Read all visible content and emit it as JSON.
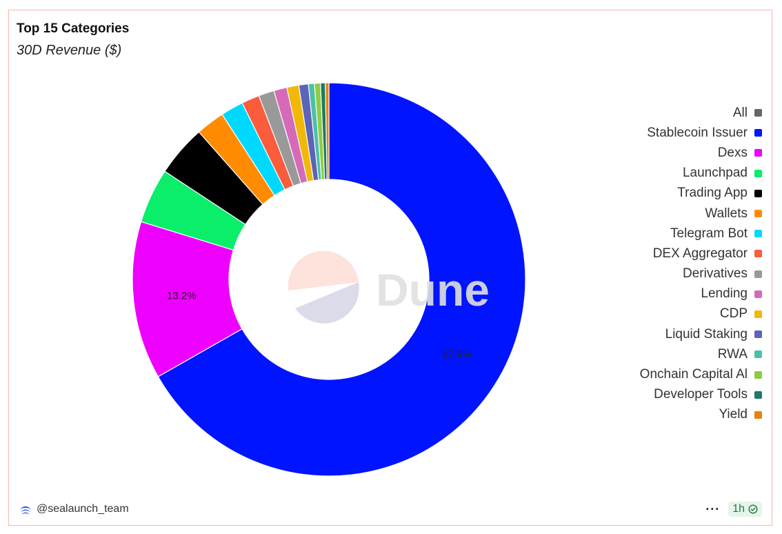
{
  "header": {
    "title": "Top 15 Categories",
    "subtitle": "30D Revenue ($)"
  },
  "watermark": {
    "text": "Dune"
  },
  "footer": {
    "author": "@sealaunch_team",
    "refresh_label": "1h",
    "more_icon": "more-horizontal-icon",
    "check_icon": "check-circle-icon"
  },
  "colors": {
    "border": "#f2b8a8",
    "refresh_bg": "#e6f4ea",
    "refresh_text": "#1e7a3c"
  },
  "chart_data": {
    "type": "pie",
    "donut": true,
    "title": "Top 15 Categories",
    "subtitle": "30D Revenue ($)",
    "legend_position": "right",
    "categories": [
      "All",
      "Stablecoin Issuer",
      "Dexs",
      "Launchpad",
      "Trading App",
      "Wallets",
      "Telegram Bot",
      "DEX Aggregator",
      "Derivatives",
      "Lending",
      "CDP",
      "Liquid Staking",
      "RWA",
      "Onchain Capital Al",
      "Developer Tools",
      "Yield"
    ],
    "colors": [
      "#666666",
      "#0014ff",
      "#ee00ff",
      "#0aee6a",
      "#000000",
      "#ff8c00",
      "#00d9ff",
      "#fa5c3c",
      "#999999",
      "#d66ab8",
      "#f2b807",
      "#5b64b8",
      "#4dbfa8",
      "#8fcc44",
      "#1e7a66",
      "#e5840b"
    ],
    "values": [
      0,
      67.9,
      13.2,
      4.6,
      4.3,
      2.4,
      1.9,
      1.5,
      1.3,
      1.1,
      1.0,
      0.8,
      0.5,
      0.5,
      0.4,
      0.3
    ],
    "data_labels": [
      {
        "category": "Stablecoin Issuer",
        "text": "67.9%"
      },
      {
        "category": "Dexs",
        "text": "13.2%"
      }
    ]
  }
}
